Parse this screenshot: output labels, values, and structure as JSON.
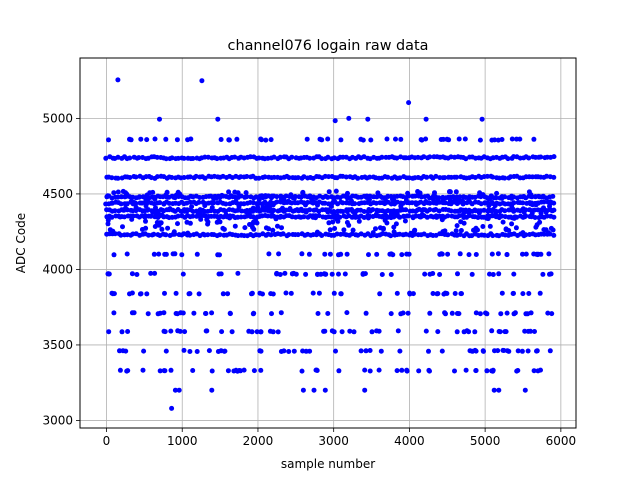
{
  "chart_data": {
    "type": "scatter",
    "title": "channel076 logain raw data",
    "xlabel": "sample number",
    "ylabel": "ADC Code",
    "xlim": [
      -350,
      6200
    ],
    "ylim": [
      2950,
      5400
    ],
    "xticks": [
      0,
      1000,
      2000,
      3000,
      4000,
      5000,
      6000
    ],
    "yticks": [
      3000,
      3500,
      4000,
      4500,
      5000
    ],
    "xtick_labels": [
      "0",
      "1000",
      "2000",
      "3000",
      "4000",
      "5000",
      "6000"
    ],
    "ytick_labels": [
      "3000",
      "3500",
      "4000",
      "4500",
      "5000"
    ],
    "grid": true,
    "marker_color": "#0000ff",
    "series": [
      {
        "sample_count": 5900,
        "x_range": [
          0,
          5900
        ],
        "dense_levels": [
          4740,
          4610,
          4480,
          4440,
          4390,
          4350,
          4230
        ],
        "moderate_levels": [
          4860,
          4100,
          3970,
          3840,
          3710,
          3590,
          3460,
          3330
        ],
        "outliers": [
          {
            "x": 150,
            "y": 5255
          },
          {
            "x": 1260,
            "y": 5250
          },
          {
            "x": 700,
            "y": 4995
          },
          {
            "x": 1470,
            "y": 4995
          },
          {
            "x": 3020,
            "y": 4985
          },
          {
            "x": 3200,
            "y": 5000
          },
          {
            "x": 3450,
            "y": 4995
          },
          {
            "x": 3990,
            "y": 5105
          },
          {
            "x": 4220,
            "y": 4995
          },
          {
            "x": 4960,
            "y": 4995
          },
          {
            "x": 860,
            "y": 3080
          },
          {
            "x": 910,
            "y": 3200
          },
          {
            "x": 960,
            "y": 3200
          },
          {
            "x": 1390,
            "y": 3200
          },
          {
            "x": 2600,
            "y": 3200
          },
          {
            "x": 2740,
            "y": 3200
          },
          {
            "x": 2890,
            "y": 3200
          },
          {
            "x": 3410,
            "y": 3200
          },
          {
            "x": 5120,
            "y": 3200
          },
          {
            "x": 5180,
            "y": 3200
          },
          {
            "x": 5530,
            "y": 3200
          }
        ]
      }
    ]
  }
}
